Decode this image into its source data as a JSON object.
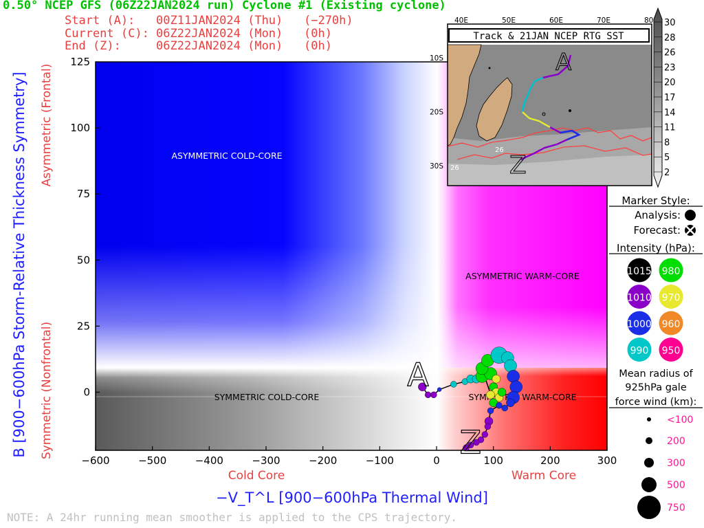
{
  "header": {
    "title": "0.50° NCEP GFS (06Z22JAN2024 run) Cyclone #1 (Existing cyclone)",
    "start": "Start (A):   00Z11JAN2024 (Thu)   (−270h)",
    "current": "Current (C): 06Z22JAN2024 (Mon)   (0h)",
    "end": "End (Z):     06Z22JAN2024 (Mon)   (0h)"
  },
  "note": "NOTE:  A 24hr running mean smoother is applied to the CPS trajectory.",
  "colors": {
    "title": "#00c000",
    "info": "#e84040",
    "axis_blue": "#2020ff",
    "cold_blue": "#0000ff",
    "warm_magenta": "#ff00ff",
    "warm_red": "#ff0000",
    "cold_gray": "#606060",
    "land": "#d2aa80",
    "sst_line": "#ff4040"
  },
  "chart_data": {
    "type": "scatter",
    "title": "",
    "xlabel": "−V_T^L [900−600hPa Thermal Wind]",
    "ylabel": "B [900−600hPa Storm-Relative Thickness Symmetry]",
    "xlim": [
      -600,
      300
    ],
    "ylim": [
      -22,
      125
    ],
    "xticks": [
      "−600",
      "−500",
      "−400",
      "−300",
      "−200",
      "−100",
      "0",
      "100",
      "200",
      "300"
    ],
    "xtick_values": [
      -600,
      -500,
      -400,
      -300,
      -200,
      -100,
      0,
      100,
      200,
      300
    ],
    "yticks": [
      "0",
      "25",
      "50",
      "75",
      "100",
      "125"
    ],
    "ytick_values": [
      0,
      25,
      50,
      75,
      100,
      125
    ],
    "x_side_labels": {
      "left": "Cold Core",
      "right": "Warm Core"
    },
    "y_side_labels": {
      "top": "Asymmetric (Frontal)",
      "bottom": "Symmetric (Nonfrontal)"
    },
    "quadrants": {
      "upper_left": "ASYMMETRIC COLD-CORE",
      "upper_right": "ASYMMETRIC WARM-CORE",
      "lower_left": "SYMMETRIC COLD-CORE",
      "lower_right": "SYMMETRIC WARM-CORE"
    },
    "start_marker": {
      "label": "A",
      "x": -30,
      "y": 3
    },
    "end_marker": {
      "label": "Z",
      "x": 60,
      "y": -18
    },
    "track": [
      {
        "x": -25,
        "y": 2,
        "r": 300,
        "p": 1010
      },
      {
        "x": -15,
        "y": -1,
        "r": 200,
        "p": 1010
      },
      {
        "x": -5,
        "y": -1,
        "r": 200,
        "p": 1010
      },
      {
        "x": 5,
        "y": 1,
        "r": 100,
        "p": 1000
      },
      {
        "x": 30,
        "y": 3,
        "r": 200,
        "p": 990
      },
      {
        "x": 50,
        "y": 4,
        "r": 200,
        "p": 990
      },
      {
        "x": 60,
        "y": 5,
        "r": 300,
        "p": 990
      },
      {
        "x": 70,
        "y": 5,
        "r": 300,
        "p": 990
      },
      {
        "x": 80,
        "y": 6,
        "r": 500,
        "p": 980
      },
      {
        "x": 95,
        "y": 7,
        "r": 500,
        "p": 980
      },
      {
        "x": 105,
        "y": 5,
        "r": 300,
        "p": 970
      },
      {
        "x": 100,
        "y": 2,
        "r": 300,
        "p": 980
      },
      {
        "x": 105,
        "y": 0,
        "r": 300,
        "p": 970
      },
      {
        "x": 95,
        "y": -1,
        "r": 300,
        "p": 970
      },
      {
        "x": 110,
        "y": -2,
        "r": 300,
        "p": 970
      },
      {
        "x": 115,
        "y": 0,
        "r": 300,
        "p": 980
      },
      {
        "x": 100,
        "y": -4,
        "r": 300,
        "p": 980
      },
      {
        "x": 80,
        "y": 9,
        "r": 500,
        "p": 980
      },
      {
        "x": 90,
        "y": 12,
        "r": 500,
        "p": 980
      },
      {
        "x": 110,
        "y": 14,
        "r": 750,
        "p": 990
      },
      {
        "x": 125,
        "y": 13,
        "r": 500,
        "p": 990
      },
      {
        "x": 130,
        "y": 10,
        "r": 500,
        "p": 990
      },
      {
        "x": 135,
        "y": 6,
        "r": 500,
        "p": 1000
      },
      {
        "x": 140,
        "y": 2,
        "r": 500,
        "p": 1000
      },
      {
        "x": 135,
        "y": -2,
        "r": 500,
        "p": 1000
      },
      {
        "x": 130,
        "y": -4,
        "r": 300,
        "p": 1000
      },
      {
        "x": 120,
        "y": -6,
        "r": 200,
        "p": 1000
      },
      {
        "x": 110,
        "y": -5,
        "r": 200,
        "p": 1000
      },
      {
        "x": 95,
        "y": -7,
        "r": 200,
        "p": 1000
      },
      {
        "x": 92,
        "y": -11,
        "r": 300,
        "p": 1010
      },
      {
        "x": 90,
        "y": -13,
        "r": 200,
        "p": 1010
      },
      {
        "x": 85,
        "y": -16,
        "r": 200,
        "p": 1010
      },
      {
        "x": 78,
        "y": -18,
        "r": 200,
        "p": 1010
      },
      {
        "x": 70,
        "y": -19,
        "r": 200,
        "p": 1010
      },
      {
        "x": 60,
        "y": -20,
        "r": 200,
        "p": 1010
      },
      {
        "x": 52,
        "y": -21,
        "r": 200,
        "p": 1010
      }
    ]
  },
  "inset": {
    "title": "Track & 21JAN NCEP RTG SST",
    "lon_labels": [
      "40E",
      "50E",
      "60E",
      "70E",
      "80E"
    ],
    "lon_values": [
      40,
      50,
      60,
      70,
      80
    ],
    "lat_labels": [
      "10S",
      "20S",
      "30S"
    ],
    "lat_values": [
      -10,
      -20,
      -30
    ],
    "sst_contour_labels": [
      "26",
      "26"
    ],
    "start_label": "A",
    "end_label": "Z"
  },
  "colorbar": {
    "labels": [
      "30",
      "28",
      "26",
      "23",
      "20",
      "17",
      "14",
      "11",
      "8",
      "5",
      "2"
    ]
  },
  "legend": {
    "marker_style_title": "Marker Style:",
    "analysis_label": "Analysis:",
    "forecast_label": "Forecast:",
    "intensity_title": "Intensity (hPa):",
    "intensity": [
      {
        "label": "1015",
        "color": "#000000"
      },
      {
        "label": "980",
        "color": "#00dd00"
      },
      {
        "label": "1010",
        "color": "#8a00c8"
      },
      {
        "label": "970",
        "color": "#e8e830"
      },
      {
        "label": "1000",
        "color": "#1a2ee6"
      },
      {
        "label": "960",
        "color": "#f08828"
      },
      {
        "label": "990",
        "color": "#00c8c8"
      },
      {
        "label": "950",
        "color": "#ff0090"
      }
    ],
    "radius_title_1": "Mean radius of",
    "radius_title_2": "925hPa gale",
    "radius_title_3": "force wind (km):",
    "radius_sizes": [
      {
        "label": "<100",
        "km": 100
      },
      {
        "label": "200",
        "km": 200
      },
      {
        "label": "300",
        "km": 300
      },
      {
        "label": "500",
        "km": 500
      },
      {
        "label": "750",
        "km": 750
      }
    ]
  }
}
